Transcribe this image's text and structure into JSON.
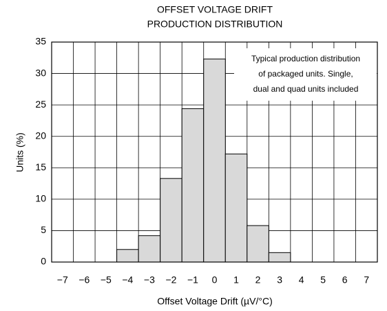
{
  "chart_data": {
    "type": "bar",
    "title": [
      "OFFSET VOLTAGE DRIFT",
      "PRODUCTION DISTRIBUTION"
    ],
    "annotation": [
      "Typical production distribution",
      "of packaged units. Single,",
      "dual and quad units included"
    ],
    "xlabel": "Offset Voltage Drift (µV/°C)",
    "ylabel": "Units (%)",
    "categories": [
      "−7",
      "−6",
      "−5",
      "−4",
      "−3",
      "−2",
      "−1",
      "0",
      "1",
      "2",
      "3",
      "4",
      "5",
      "6",
      "7"
    ],
    "values": [
      0,
      0,
      0,
      2,
      4.2,
      13.3,
      24.4,
      32.3,
      17.2,
      5.8,
      1.5,
      0,
      0,
      0,
      0
    ],
    "color": "#d9d9d9",
    "ylim": [
      0,
      35
    ],
    "yticks": [
      0,
      5,
      10,
      15,
      20,
      25,
      30,
      35
    ],
    "grid": true
  }
}
